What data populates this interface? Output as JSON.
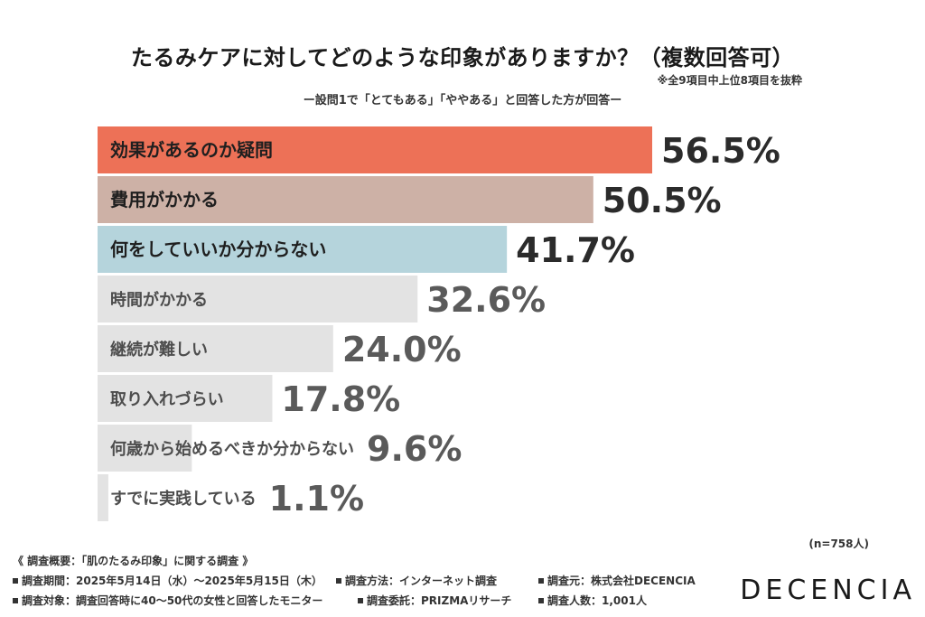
{
  "title": "たるみケアに対してどのような印象がありますか？（複数回答可）",
  "note": "※全9項目中上位8項目を抜粋",
  "subtitle": "ー設問1で「とてもある」「ややある」と回答した方が回答ー",
  "sample_size": "(n=758人)",
  "footer": {
    "title": "《 調査概要：「肌のたるみ印象」に関する調査 》",
    "period": "調査期間：2025年5月14日（水）〜2025年5月15日（木）",
    "method": "調査方法：インターネット調査",
    "organizer": "調査元：株式会社DECENCIA",
    "target": "調査対象：調査回答時に40〜50代の女性と回答したモニター",
    "commission": "調査委託：PRIZMAリサーチ",
    "respondents": "調査人数：1,001人"
  },
  "logo": "DECENCIA",
  "colors": {
    "top1": "#ed7157",
    "top2": "#cdb1a6",
    "top3": "#b5d4dc",
    "rest": "#e3e3e3"
  },
  "chart_data": {
    "type": "bar",
    "orientation": "horizontal",
    "categories": [
      "効果があるのか疑問",
      "費用がかかる",
      "何をしていいか分からない",
      "時間がかかる",
      "継続が難しい",
      "取り入れづらい",
      "何歳から始めるべきか分からない",
      "すでに実践している"
    ],
    "values": [
      56.5,
      50.5,
      41.7,
      32.6,
      24.0,
      17.8,
      9.6,
      1.1
    ],
    "value_labels": [
      "56.5%",
      "50.5%",
      "41.7%",
      "32.6%",
      "24.0%",
      "17.8%",
      "9.6%",
      "1.1%"
    ],
    "unit": "%"
  }
}
